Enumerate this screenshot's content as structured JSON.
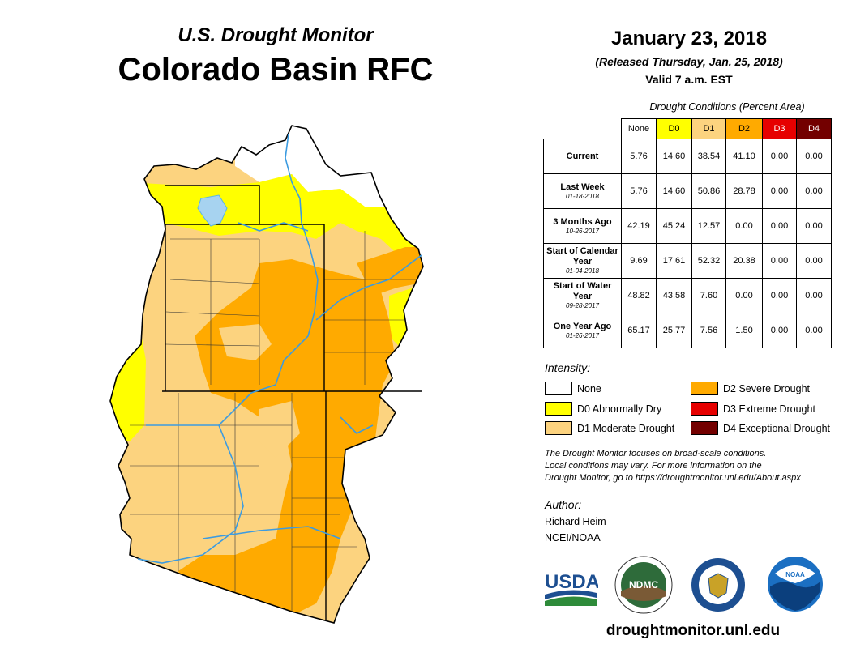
{
  "header": {
    "title_line1": "U.S. Drought Monitor",
    "title_line2": "Colorado Basin RFC",
    "date": "January 23, 2018",
    "released": "(Released Thursday, Jan. 25, 2018)",
    "valid": "Valid 7 a.m. EST"
  },
  "table": {
    "caption": "Drought Conditions (Percent Area)",
    "columns": [
      {
        "label": "None",
        "color": "#ffffff"
      },
      {
        "label": "D0",
        "color": "#ffff00"
      },
      {
        "label": "D1",
        "color": "#fcd37f"
      },
      {
        "label": "D2",
        "color": "#ffaa00"
      },
      {
        "label": "D3",
        "color": "#e60000"
      },
      {
        "label": "D4",
        "color": "#730000"
      }
    ],
    "rows": [
      {
        "label": "Current",
        "sub": "",
        "values": [
          "5.76",
          "14.60",
          "38.54",
          "41.10",
          "0.00",
          "0.00"
        ]
      },
      {
        "label": "Last Week",
        "sub": "01-18-2018",
        "values": [
          "5.76",
          "14.60",
          "50.86",
          "28.78",
          "0.00",
          "0.00"
        ]
      },
      {
        "label": "3 Months Ago",
        "sub": "10-26-2017",
        "values": [
          "42.19",
          "45.24",
          "12.57",
          "0.00",
          "0.00",
          "0.00"
        ]
      },
      {
        "label": "Start of Calendar Year",
        "sub": "01-04-2018",
        "values": [
          "9.69",
          "17.61",
          "52.32",
          "20.38",
          "0.00",
          "0.00"
        ]
      },
      {
        "label": "Start of Water Year",
        "sub": "09-28-2017",
        "values": [
          "48.82",
          "43.58",
          "7.60",
          "0.00",
          "0.00",
          "0.00"
        ]
      },
      {
        "label": "One Year Ago",
        "sub": "01-26-2017",
        "values": [
          "65.17",
          "25.77",
          "7.56",
          "1.50",
          "0.00",
          "0.00"
        ]
      }
    ]
  },
  "legend": {
    "title": "Intensity:",
    "items": [
      {
        "label": "None",
        "color": "#ffffff"
      },
      {
        "label": "D0 Abnormally Dry",
        "color": "#ffff00"
      },
      {
        "label": "D1 Moderate Drought",
        "color": "#fcd37f"
      },
      {
        "label": "D2 Severe Drought",
        "color": "#ffaa00"
      },
      {
        "label": "D3 Extreme Drought",
        "color": "#e60000"
      },
      {
        "label": "D4 Exceptional Drought",
        "color": "#730000"
      }
    ]
  },
  "note": {
    "line1": "The Drought Monitor focuses on broad-scale conditions.",
    "line2": "Local conditions may vary. For more information on the",
    "line3": "Drought Monitor, go to https://droughtmonitor.unl.edu/About.aspx"
  },
  "author": {
    "title": "Author:",
    "name": "Richard Heim",
    "org": "NCEI/NOAA"
  },
  "logos": {
    "usda": "USDA",
    "ndmc": "NDMC",
    "noaa": "NOAA"
  },
  "footer_url": "droughtmonitor.unl.edu",
  "map_colors": {
    "none": "#ffffff",
    "d0": "#ffff00",
    "d1": "#fcd37f",
    "d2": "#ffaa00",
    "water": "#5ab4e6",
    "lake": "#a7d3f0"
  }
}
